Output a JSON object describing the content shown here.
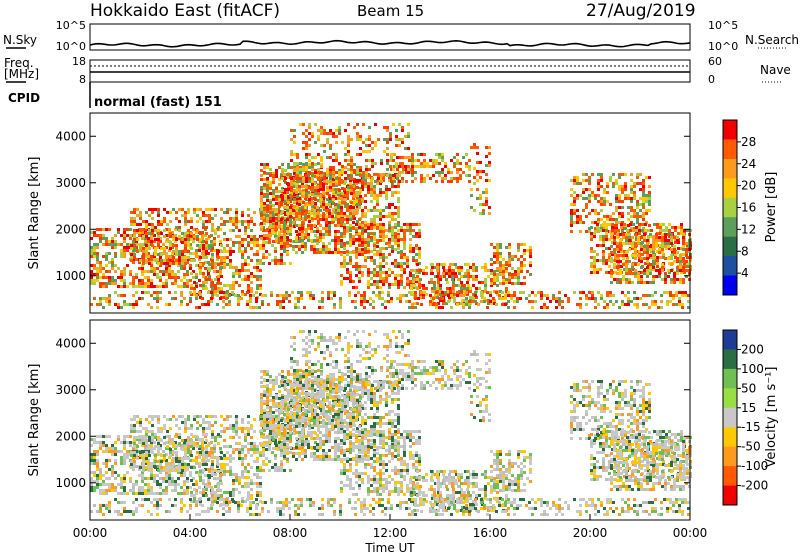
{
  "header": {
    "title": "Hokkaido East (fitACF)",
    "beam": "Beam 15",
    "date": "27/Aug/2019"
  },
  "side_labels": {
    "nsky": "N.Sky",
    "nsearch": "N.Search",
    "freq": "Freq.",
    "freq_unit": "[MHz]",
    "nave": "Nave",
    "cpid": "CPID",
    "cpid_value": "normal (fast) 151"
  },
  "noise_axis_ticks": {
    "left": [
      "10^5",
      "10^0"
    ],
    "right": [
      "10^5",
      "10^0"
    ]
  },
  "freq_axis_ticks": {
    "left": [
      "18",
      "8"
    ],
    "right": [
      "60",
      "0"
    ]
  },
  "chart_data": [
    {
      "type": "heatmap",
      "id": "power",
      "ylabel": "Slant Range [km]",
      "xlabel": "",
      "ylim": [
        200,
        4500
      ],
      "yticks": [
        "1000",
        "2000",
        "3000",
        "4000"
      ],
      "xticks": [
        "00:00",
        "04:00",
        "08:00",
        "12:00",
        "16:00",
        "20:00",
        "00:00"
      ],
      "colorbar": {
        "label": "Power [dB]",
        "ticks": [
          "28",
          "24",
          "20",
          "16",
          "12",
          "8",
          "4"
        ],
        "colors": [
          "#f00000",
          "#ff5a00",
          "#ff9a1e",
          "#ffc800",
          "#a8d040",
          "#5aa05a",
          "#2a6e46",
          "#1e50a0",
          "#0000f0"
        ]
      },
      "grid": false
    },
    {
      "type": "heatmap",
      "id": "velocity",
      "ylabel": "Slant Range [km]",
      "xlabel": "Time UT",
      "ylim": [
        200,
        4500
      ],
      "yticks": [
        "1000",
        "2000",
        "3000",
        "4000"
      ],
      "xticks": [
        "00:00",
        "04:00",
        "08:00",
        "12:00",
        "16:00",
        "20:00",
        "00:00"
      ],
      "colorbar": {
        "label": "Velocity [m s⁻¹]",
        "ticks": [
          "200",
          "100",
          "50",
          "15",
          "-15",
          "-50",
          "-100",
          "-200"
        ],
        "colors": [
          "#1e3c96",
          "#2a6e46",
          "#6ec050",
          "#96e040",
          "#c8c8c8",
          "#ffc800",
          "#ff9a1e",
          "#ff5a00",
          "#f00000"
        ]
      },
      "grid": false
    }
  ]
}
